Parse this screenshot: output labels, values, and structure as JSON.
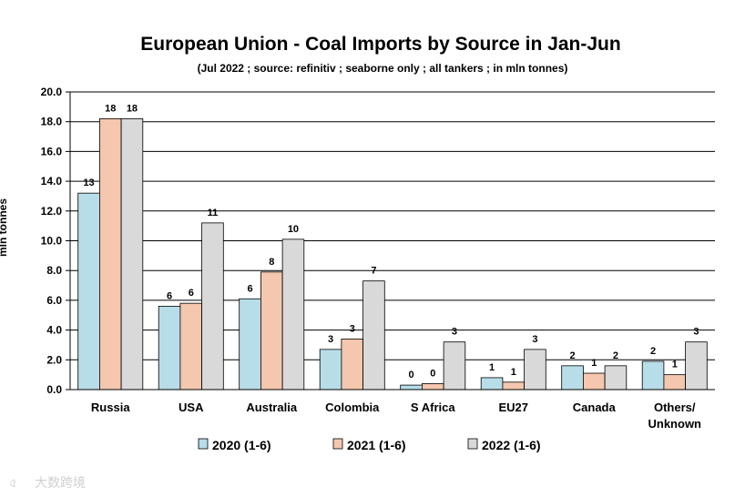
{
  "chart_data": {
    "type": "bar",
    "title": "European Union - Coal Imports by Source in Jan-Jun",
    "subtitle": "(Jul 2022 ; source: refinitiv ; seaborne only ; all tankers ; in mln tonnes)",
    "ylabel": "mln tonnes",
    "xlabel": "",
    "ylim": [
      0,
      20
    ],
    "yticks": [
      "0.0",
      "2.0",
      "4.0",
      "6.0",
      "8.0",
      "10.0",
      "12.0",
      "14.0",
      "16.0",
      "18.0",
      "20.0"
    ],
    "grid": true,
    "legend_position": "bottom",
    "categories": [
      [
        "Russia"
      ],
      [
        "USA"
      ],
      [
        "Australia"
      ],
      [
        "Colombia"
      ],
      [
        "S Africa"
      ],
      [
        "EU27"
      ],
      [
        "Canada"
      ],
      [
        "Others/",
        "Unknown"
      ]
    ],
    "series": [
      {
        "name": "2020 (1-6)",
        "color": "#b7dde8",
        "values": [
          13.2,
          5.6,
          6.1,
          2.7,
          0.3,
          0.8,
          1.6,
          1.9
        ],
        "labels": [
          "13",
          "6",
          "6",
          "3",
          "0",
          "1",
          "2",
          "2"
        ]
      },
      {
        "name": "2021 (1-6)",
        "color": "#f4c7ae",
        "values": [
          18.2,
          5.8,
          7.9,
          3.4,
          0.4,
          0.5,
          1.1,
          1.0
        ],
        "labels": [
          "18",
          "6",
          "8",
          "3",
          "0",
          "1",
          "1",
          "1"
        ]
      },
      {
        "name": "2022 (1-6)",
        "color": "#d9d9d9",
        "values": [
          18.2,
          11.2,
          10.1,
          7.3,
          3.2,
          2.7,
          1.6,
          3.2
        ],
        "labels": [
          "18",
          "11",
          "10",
          "7",
          "3",
          "3",
          "2",
          "3"
        ]
      }
    ]
  },
  "watermark": {
    "text": "大数跨境"
  }
}
